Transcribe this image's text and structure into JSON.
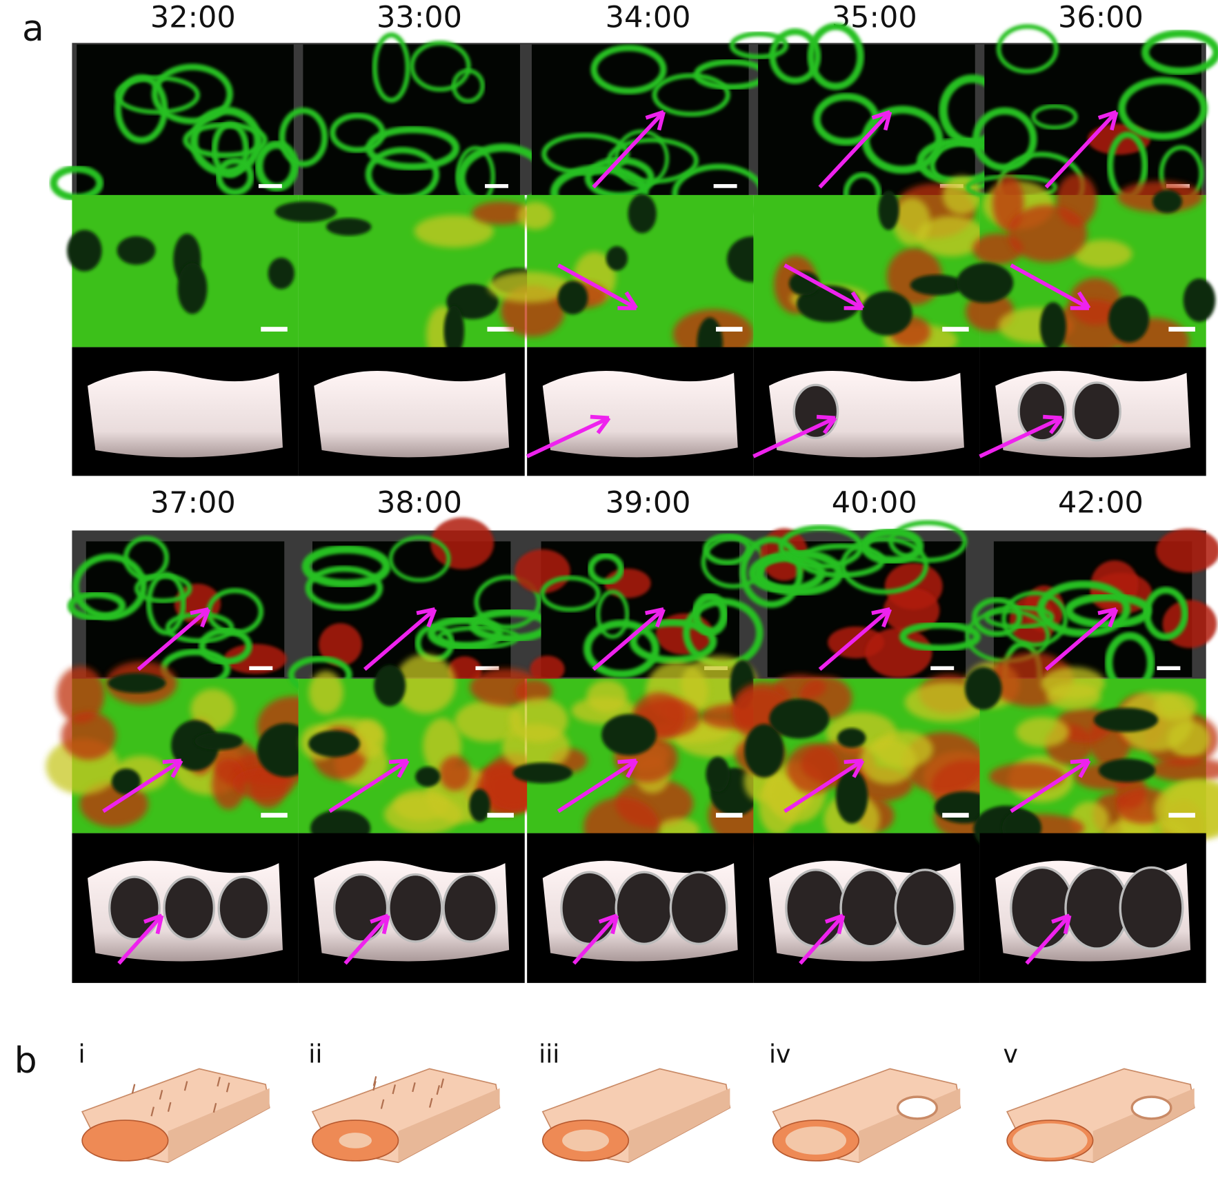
{
  "panel_a": {
    "label": "a",
    "blocks": [
      {
        "times": [
          "32:00",
          "33:00",
          "34:00",
          "35:00",
          "36:00"
        ]
      },
      {
        "times": [
          "37:00",
          "38:00",
          "39:00",
          "40:00",
          "42:00"
        ]
      }
    ]
  },
  "panel_b": {
    "label": "b",
    "stages": [
      "i",
      "ii",
      "iii",
      "iv",
      "v"
    ]
  }
}
